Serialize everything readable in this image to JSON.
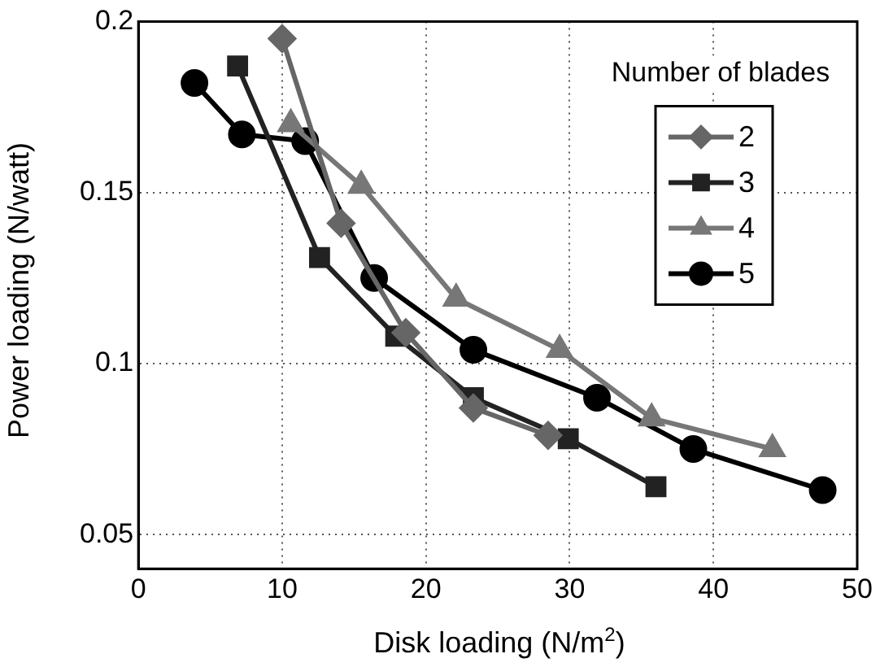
{
  "chart_data": {
    "type": "line",
    "xlabel": "Disk loading (N/m$^{2}$)",
    "ylabel": "Power loading (N/watt)",
    "xlim": [
      0,
      50
    ],
    "xticks": [
      0,
      10,
      20,
      30,
      40,
      50
    ],
    "ylim": [
      0.04,
      0.2
    ],
    "yticks": [
      0.05,
      0.1,
      0.15,
      0.2
    ],
    "grid": true,
    "legend": "top right",
    "legend_title": "Number of blades",
    "series": [
      {
        "name": "2",
        "color": "#666666",
        "marker": "diamond",
        "x": [
          10.0,
          14.1,
          18.6,
          23.3,
          28.5
        ],
        "values": [
          0.195,
          0.141,
          0.109,
          0.087,
          0.079
        ]
      },
      {
        "name": "3",
        "color": "#222222",
        "marker": "square",
        "x": [
          6.9,
          12.6,
          17.9,
          23.3,
          29.9,
          36.0
        ],
        "values": [
          0.187,
          0.131,
          0.108,
          0.09,
          0.078,
          0.064
        ]
      },
      {
        "name": "4",
        "color": "#777777",
        "marker": "triangle",
        "x": [
          10.6,
          15.5,
          22.1,
          29.3,
          35.7,
          44.1
        ],
        "values": [
          0.17,
          0.152,
          0.119,
          0.104,
          0.084,
          0.075
        ]
      },
      {
        "name": "5",
        "color": "#000000",
        "marker": "circle",
        "x": [
          3.9,
          7.2,
          11.6,
          16.4,
          23.3,
          31.9,
          38.6,
          47.6
        ],
        "values": [
          0.182,
          0.167,
          0.165,
          0.125,
          0.104,
          0.09,
          0.075,
          0.063
        ]
      }
    ]
  }
}
